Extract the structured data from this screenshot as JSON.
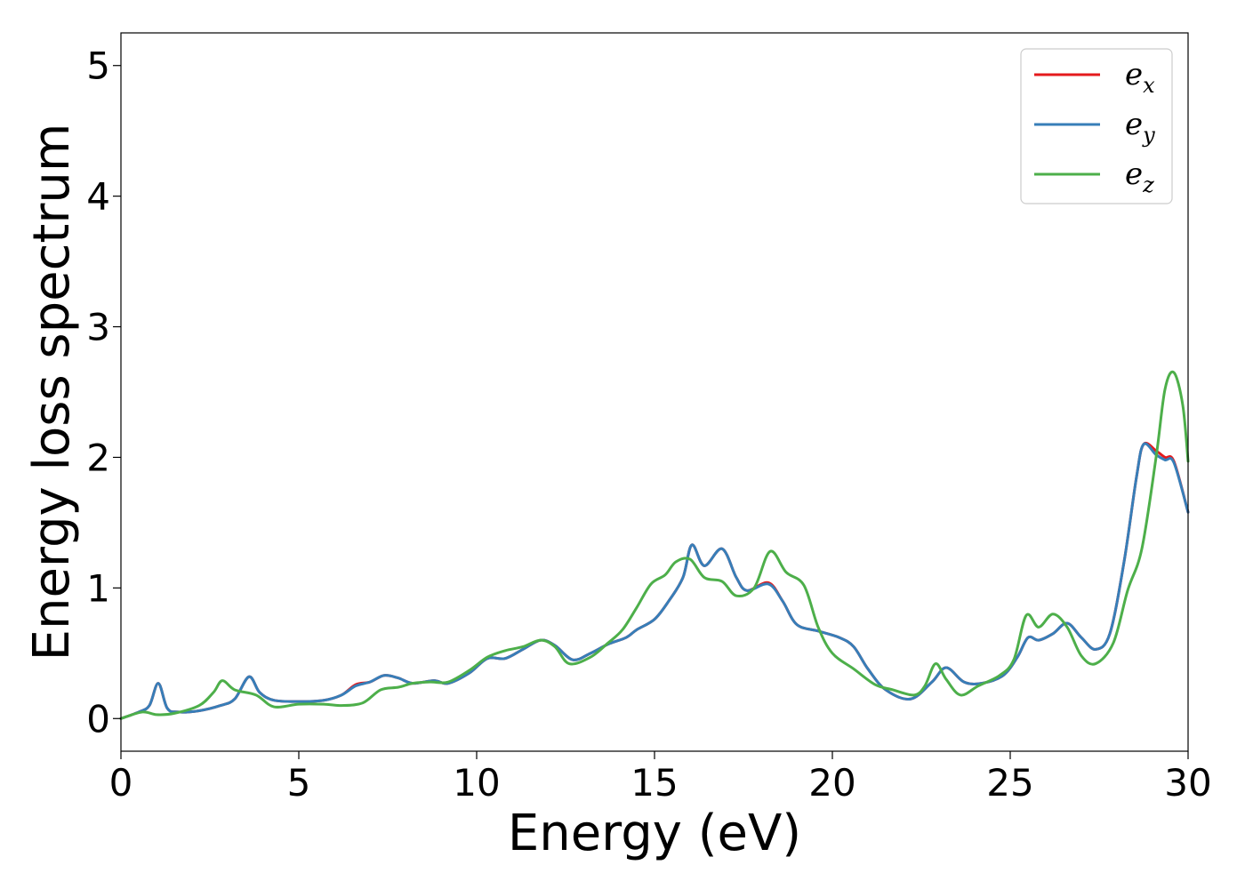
{
  "chart_data": {
    "type": "line",
    "xlabel": "Energy (eV)",
    "ylabel": "Energy loss spectrum",
    "xlim": [
      0,
      30
    ],
    "ylim": [
      -0.25,
      5.25
    ],
    "xticks": [
      0,
      5,
      10,
      15,
      20,
      25,
      30
    ],
    "yticks": [
      0,
      1,
      2,
      3,
      4,
      5
    ],
    "grid": false,
    "legend_position": "top-right",
    "series": [
      {
        "name": "e_x",
        "legend_base": "e",
        "legend_sub": "x",
        "color": "#e41a1c",
        "points": [
          [
            0,
            0
          ],
          [
            0.5,
            0.05
          ],
          [
            0.8,
            0.1
          ],
          [
            1.05,
            0.27
          ],
          [
            1.3,
            0.08
          ],
          [
            1.6,
            0.05
          ],
          [
            2.2,
            0.06
          ],
          [
            2.8,
            0.1
          ],
          [
            3.2,
            0.15
          ],
          [
            3.6,
            0.32
          ],
          [
            3.9,
            0.2
          ],
          [
            4.3,
            0.14
          ],
          [
            5,
            0.13
          ],
          [
            5.7,
            0.14
          ],
          [
            6.2,
            0.18
          ],
          [
            6.6,
            0.26
          ],
          [
            7,
            0.28
          ],
          [
            7.4,
            0.33
          ],
          [
            7.8,
            0.31
          ],
          [
            8.2,
            0.27
          ],
          [
            8.8,
            0.29
          ],
          [
            9.2,
            0.27
          ],
          [
            9.8,
            0.35
          ],
          [
            10.3,
            0.46
          ],
          [
            10.8,
            0.46
          ],
          [
            11.3,
            0.53
          ],
          [
            11.8,
            0.6
          ],
          [
            12.2,
            0.56
          ],
          [
            12.7,
            0.45
          ],
          [
            13.2,
            0.5
          ],
          [
            13.7,
            0.57
          ],
          [
            14.2,
            0.62
          ],
          [
            14.5,
            0.68
          ],
          [
            15,
            0.76
          ],
          [
            15.4,
            0.9
          ],
          [
            15.8,
            1.08
          ],
          [
            16.05,
            1.33
          ],
          [
            16.4,
            1.17
          ],
          [
            16.9,
            1.3
          ],
          [
            17.3,
            1.08
          ],
          [
            17.6,
            0.98
          ],
          [
            18.2,
            1.04
          ],
          [
            18.6,
            0.9
          ],
          [
            19,
            0.72
          ],
          [
            19.6,
            0.67
          ],
          [
            20.2,
            0.62
          ],
          [
            20.6,
            0.55
          ],
          [
            21,
            0.38
          ],
          [
            21.5,
            0.22
          ],
          [
            22.2,
            0.15
          ],
          [
            22.8,
            0.28
          ],
          [
            23.2,
            0.39
          ],
          [
            23.7,
            0.28
          ],
          [
            24.2,
            0.27
          ],
          [
            24.8,
            0.33
          ],
          [
            25.2,
            0.47
          ],
          [
            25.5,
            0.62
          ],
          [
            25.8,
            0.6
          ],
          [
            26.2,
            0.65
          ],
          [
            26.6,
            0.73
          ],
          [
            27,
            0.62
          ],
          [
            27.4,
            0.53
          ],
          [
            27.8,
            0.65
          ],
          [
            28.2,
            1.2
          ],
          [
            28.55,
            1.85
          ],
          [
            28.75,
            2.1
          ],
          [
            29.1,
            2.05
          ],
          [
            29.35,
            2.0
          ],
          [
            29.6,
            1.97
          ],
          [
            30,
            1.58
          ]
        ]
      },
      {
        "name": "e_y",
        "legend_base": "e",
        "legend_sub": "y",
        "color": "#377eb8",
        "points": [
          [
            0,
            0
          ],
          [
            0.5,
            0.05
          ],
          [
            0.8,
            0.1
          ],
          [
            1.05,
            0.27
          ],
          [
            1.3,
            0.08
          ],
          [
            1.6,
            0.05
          ],
          [
            2.2,
            0.06
          ],
          [
            2.8,
            0.1
          ],
          [
            3.2,
            0.15
          ],
          [
            3.6,
            0.32
          ],
          [
            3.9,
            0.2
          ],
          [
            4.3,
            0.14
          ],
          [
            5,
            0.13
          ],
          [
            5.7,
            0.14
          ],
          [
            6.2,
            0.18
          ],
          [
            6.6,
            0.25
          ],
          [
            7,
            0.28
          ],
          [
            7.4,
            0.33
          ],
          [
            7.8,
            0.31
          ],
          [
            8.2,
            0.27
          ],
          [
            8.8,
            0.29
          ],
          [
            9.2,
            0.27
          ],
          [
            9.8,
            0.35
          ],
          [
            10.3,
            0.46
          ],
          [
            10.8,
            0.46
          ],
          [
            11.3,
            0.53
          ],
          [
            11.8,
            0.6
          ],
          [
            12.2,
            0.56
          ],
          [
            12.7,
            0.45
          ],
          [
            13.2,
            0.5
          ],
          [
            13.7,
            0.57
          ],
          [
            14.2,
            0.62
          ],
          [
            14.5,
            0.68
          ],
          [
            15,
            0.76
          ],
          [
            15.4,
            0.9
          ],
          [
            15.8,
            1.08
          ],
          [
            16.05,
            1.33
          ],
          [
            16.4,
            1.17
          ],
          [
            16.9,
            1.3
          ],
          [
            17.3,
            1.08
          ],
          [
            17.6,
            0.98
          ],
          [
            18.2,
            1.03
          ],
          [
            18.6,
            0.9
          ],
          [
            19,
            0.72
          ],
          [
            19.6,
            0.67
          ],
          [
            20.2,
            0.62
          ],
          [
            20.6,
            0.55
          ],
          [
            21,
            0.38
          ],
          [
            21.5,
            0.22
          ],
          [
            22.2,
            0.15
          ],
          [
            22.8,
            0.28
          ],
          [
            23.2,
            0.39
          ],
          [
            23.7,
            0.28
          ],
          [
            24.2,
            0.27
          ],
          [
            24.8,
            0.33
          ],
          [
            25.2,
            0.47
          ],
          [
            25.5,
            0.62
          ],
          [
            25.8,
            0.6
          ],
          [
            26.2,
            0.65
          ],
          [
            26.6,
            0.73
          ],
          [
            27,
            0.62
          ],
          [
            27.4,
            0.53
          ],
          [
            27.8,
            0.65
          ],
          [
            28.2,
            1.2
          ],
          [
            28.55,
            1.85
          ],
          [
            28.75,
            2.1
          ],
          [
            29.1,
            2.02
          ],
          [
            29.35,
            1.98
          ],
          [
            29.6,
            1.96
          ],
          [
            30,
            1.58
          ]
        ]
      },
      {
        "name": "e_z",
        "legend_base": "e",
        "legend_sub": "z",
        "color": "#4daf4a",
        "points": [
          [
            0,
            0
          ],
          [
            0.6,
            0.05
          ],
          [
            1,
            0.03
          ],
          [
            1.5,
            0.04
          ],
          [
            2.2,
            0.1
          ],
          [
            2.6,
            0.2
          ],
          [
            2.85,
            0.29
          ],
          [
            3.2,
            0.22
          ],
          [
            3.8,
            0.18
          ],
          [
            4.3,
            0.09
          ],
          [
            5,
            0.11
          ],
          [
            5.7,
            0.11
          ],
          [
            6.2,
            0.1
          ],
          [
            6.8,
            0.12
          ],
          [
            7.3,
            0.22
          ],
          [
            7.8,
            0.24
          ],
          [
            8.2,
            0.27
          ],
          [
            8.7,
            0.28
          ],
          [
            9.2,
            0.28
          ],
          [
            9.8,
            0.37
          ],
          [
            10.3,
            0.47
          ],
          [
            10.8,
            0.52
          ],
          [
            11.3,
            0.55
          ],
          [
            11.8,
            0.6
          ],
          [
            12.2,
            0.55
          ],
          [
            12.6,
            0.42
          ],
          [
            13.2,
            0.47
          ],
          [
            13.7,
            0.58
          ],
          [
            14.1,
            0.68
          ],
          [
            14.5,
            0.85
          ],
          [
            14.9,
            1.03
          ],
          [
            15.3,
            1.1
          ],
          [
            15.6,
            1.2
          ],
          [
            16,
            1.22
          ],
          [
            16.4,
            1.08
          ],
          [
            16.9,
            1.05
          ],
          [
            17.3,
            0.94
          ],
          [
            17.8,
            1.0
          ],
          [
            18.25,
            1.28
          ],
          [
            18.7,
            1.12
          ],
          [
            19.2,
            1.02
          ],
          [
            19.6,
            0.7
          ],
          [
            20,
            0.5
          ],
          [
            20.6,
            0.38
          ],
          [
            21.2,
            0.26
          ],
          [
            21.7,
            0.22
          ],
          [
            22.3,
            0.18
          ],
          [
            22.6,
            0.25
          ],
          [
            22.9,
            0.42
          ],
          [
            23.2,
            0.3
          ],
          [
            23.6,
            0.18
          ],
          [
            24.1,
            0.25
          ],
          [
            24.7,
            0.33
          ],
          [
            25.1,
            0.45
          ],
          [
            25.45,
            0.79
          ],
          [
            25.8,
            0.7
          ],
          [
            26.2,
            0.8
          ],
          [
            26.6,
            0.7
          ],
          [
            27,
            0.48
          ],
          [
            27.4,
            0.42
          ],
          [
            27.9,
            0.58
          ],
          [
            28.3,
            0.98
          ],
          [
            28.7,
            1.3
          ],
          [
            29.1,
            2.0
          ],
          [
            29.35,
            2.52
          ],
          [
            29.6,
            2.65
          ],
          [
            29.85,
            2.4
          ],
          [
            30,
            1.97
          ]
        ]
      }
    ]
  }
}
